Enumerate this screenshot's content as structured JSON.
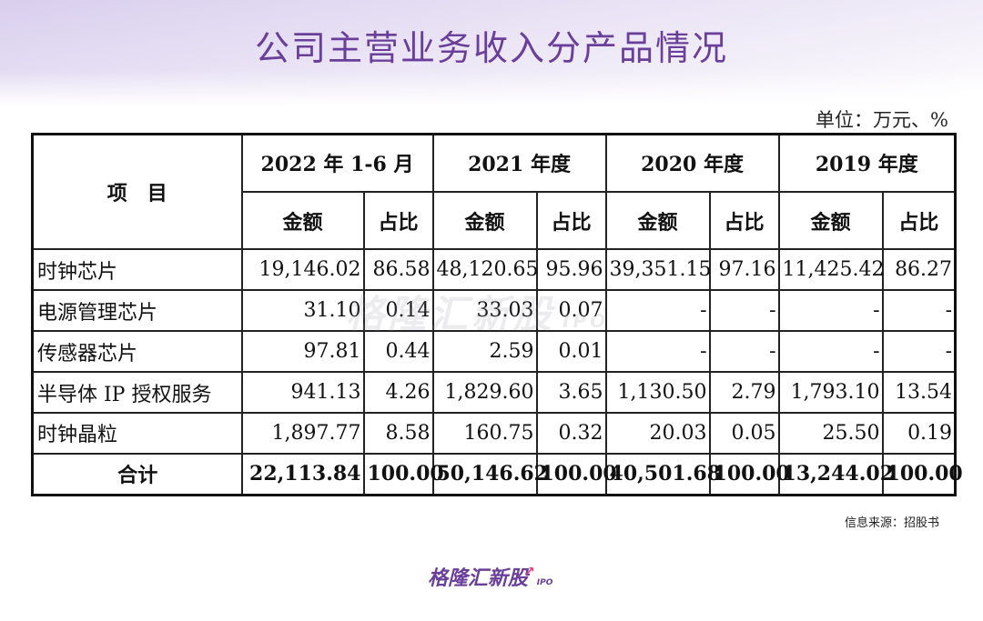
{
  "title": "公司主营业务收入分产品情况",
  "unit_label": "单位：万元、%",
  "table": {
    "item_header": "项　目",
    "periods": [
      "2022 年 1-6 月",
      "2021 年度",
      "2020 年度",
      "2019 年度"
    ],
    "amount_label": "金额",
    "ratio_label": "占比",
    "rows": [
      {
        "name": "时钟芯片",
        "cells": [
          "19,146.02",
          "86.58",
          "48,120.65",
          "95.96",
          "39,351.15",
          "97.16",
          "11,425.42",
          "86.27"
        ]
      },
      {
        "name": "电源管理芯片",
        "cells": [
          "31.10",
          "0.14",
          "33.03",
          "0.07",
          "-",
          "-",
          "-",
          "-"
        ]
      },
      {
        "name": "传感器芯片",
        "cells": [
          "97.81",
          "0.44",
          "2.59",
          "0.01",
          "-",
          "-",
          "-",
          "-"
        ]
      },
      {
        "name": "半导体 IP 授权服务",
        "cells": [
          "941.13",
          "4.26",
          "1,829.60",
          "3.65",
          "1,130.50",
          "2.79",
          "1,793.10",
          "13.54"
        ]
      },
      {
        "name": "时钟晶粒",
        "cells": [
          "1,897.77",
          "8.58",
          "160.75",
          "0.32",
          "20.03",
          "0.05",
          "25.50",
          "0.19"
        ]
      },
      {
        "name": "合计",
        "cells": [
          "22,113.84",
          "100.00",
          "50,146.62",
          "100.00",
          "40,501.68",
          "100.00",
          "13,244.02",
          "100.00"
        ]
      }
    ]
  },
  "watermark": {
    "text": "格隆汇新股",
    "sub": "IPO"
  },
  "source": "信息来源：招股书",
  "logo": {
    "text": "格隆汇新股",
    "sub": "IPO"
  }
}
